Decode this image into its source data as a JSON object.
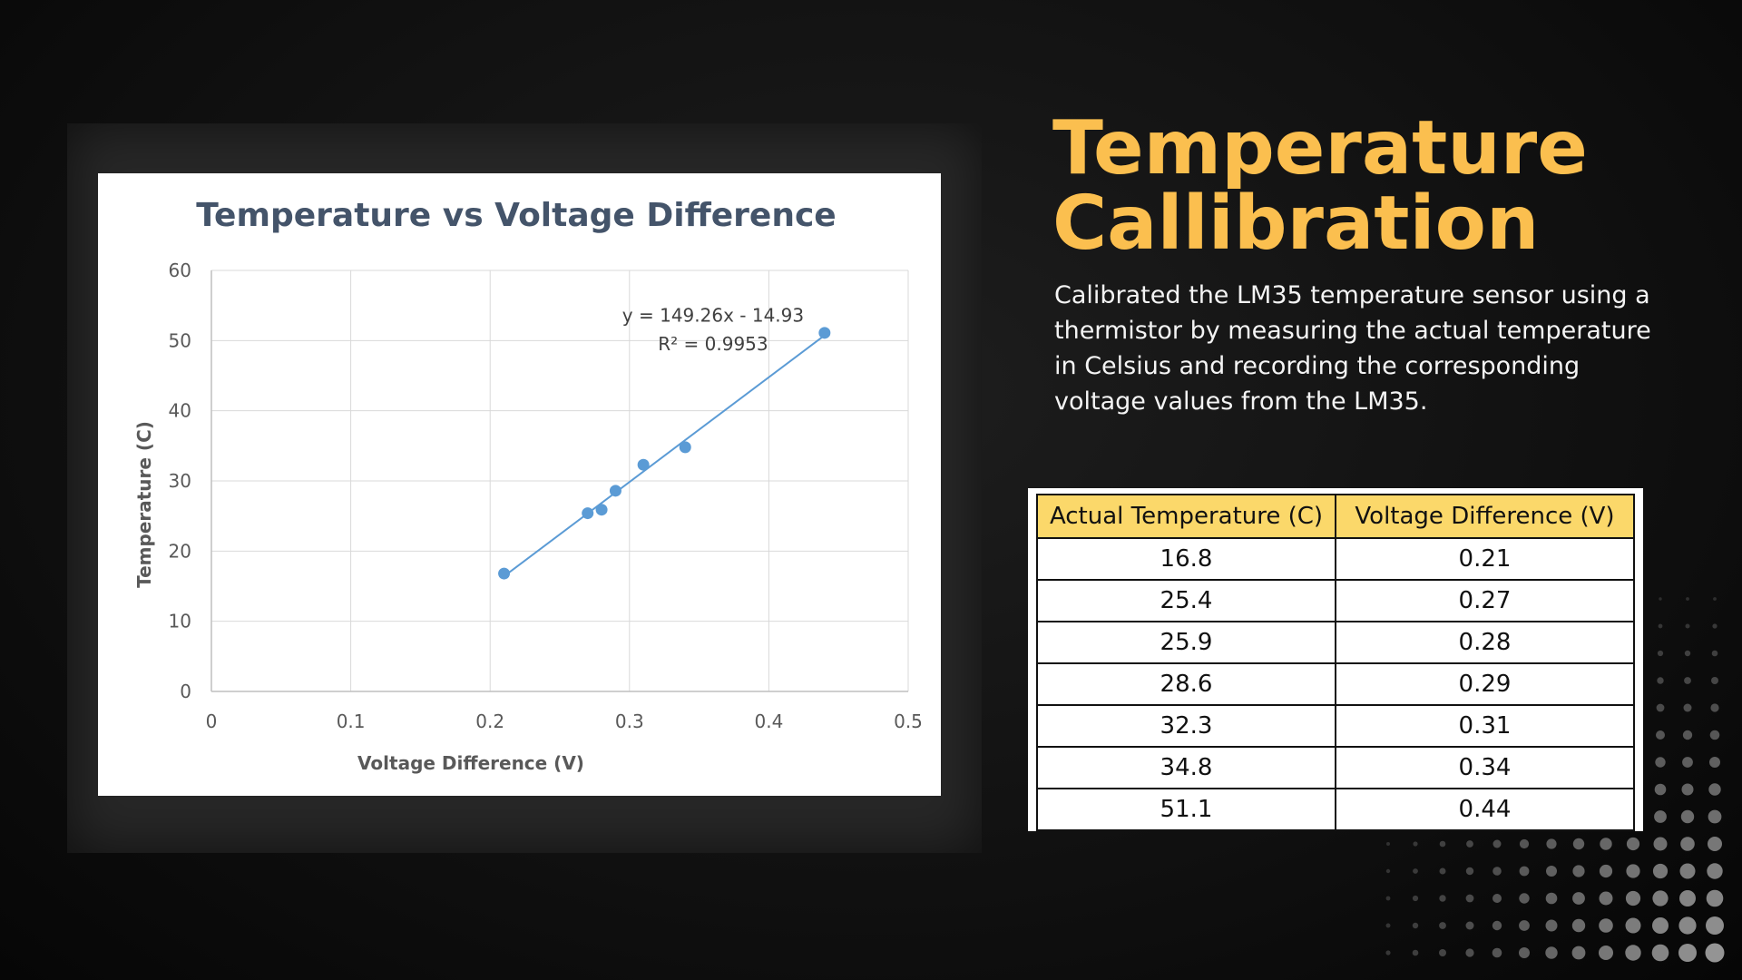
{
  "slide": {
    "title_line1": "Temperature",
    "title_line2": "Callibration",
    "description": "Calibrated the LM35 temperature sensor using a thermistor by measuring the actual temperature in Celsius and recording the corresponding voltage values from the LM35."
  },
  "table": {
    "headers": [
      "Actual Temperature (C)",
      "Voltage Difference (V)"
    ],
    "rows": [
      [
        "16.8",
        "0.21"
      ],
      [
        "25.4",
        "0.27"
      ],
      [
        "25.9",
        "0.28"
      ],
      [
        "28.6",
        "0.29"
      ],
      [
        "32.3",
        "0.31"
      ],
      [
        "34.8",
        "0.34"
      ],
      [
        "51.1",
        "0.44"
      ]
    ]
  },
  "colors": {
    "title": "#fbbf4f",
    "table_header_bg": "#fbd86a",
    "point": "#5b9bd5",
    "trendline": "#5b9bd5"
  },
  "chart_data": {
    "type": "scatter",
    "title": "Temperature vs Voltage Difference",
    "xlabel": "Voltage Difference (V)",
    "ylabel": "Temperature (C)",
    "xlim": [
      0,
      0.5
    ],
    "ylim": [
      0,
      60
    ],
    "xticks": [
      0,
      0.1,
      0.2,
      0.3,
      0.4,
      0.5
    ],
    "yticks": [
      0,
      10,
      20,
      30,
      40,
      50,
      60
    ],
    "xtick_labels": [
      "0",
      "0.1",
      "0.2",
      "0.3",
      "0.4",
      "0.5"
    ],
    "ytick_labels": [
      "0",
      "10",
      "20",
      "30",
      "40",
      "50",
      "60"
    ],
    "grid": true,
    "legend": "none",
    "x": [
      0.21,
      0.27,
      0.28,
      0.29,
      0.31,
      0.34,
      0.44
    ],
    "y": [
      16.8,
      25.4,
      25.9,
      28.6,
      32.3,
      34.8,
      51.1
    ],
    "trendline": {
      "type": "linear",
      "slope": 149.26,
      "intercept": -14.93,
      "x_range": [
        0.21,
        0.44
      ],
      "equation_label": "y = 149.26x - 14.93",
      "r2_label": "R² = 0.9953"
    }
  }
}
